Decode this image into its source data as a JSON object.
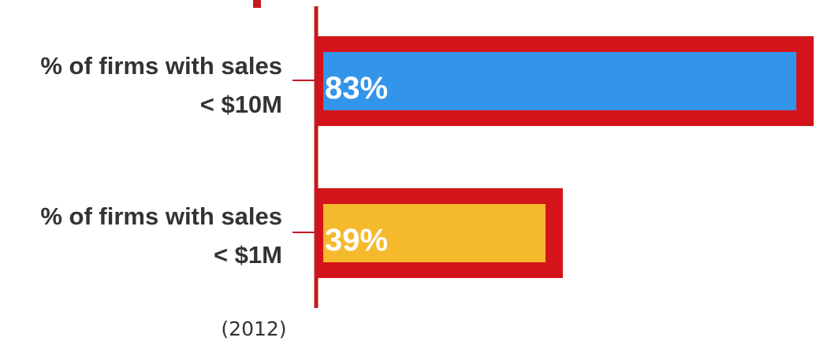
{
  "chart_data": {
    "type": "bar",
    "orientation": "horizontal",
    "categories": [
      [
        "% of firms with sales",
        "< $10M"
      ],
      [
        "% of firms with sales",
        "< $1M"
      ]
    ],
    "values": [
      83,
      39
    ],
    "value_labels": [
      "83%",
      "39%"
    ],
    "bar_colors": [
      "#3295E9",
      "#F5B92E"
    ],
    "outline_color": "#D4131A",
    "axis_color": "#C41A1F",
    "xlim": [
      0,
      100
    ],
    "note": "(2012)"
  }
}
